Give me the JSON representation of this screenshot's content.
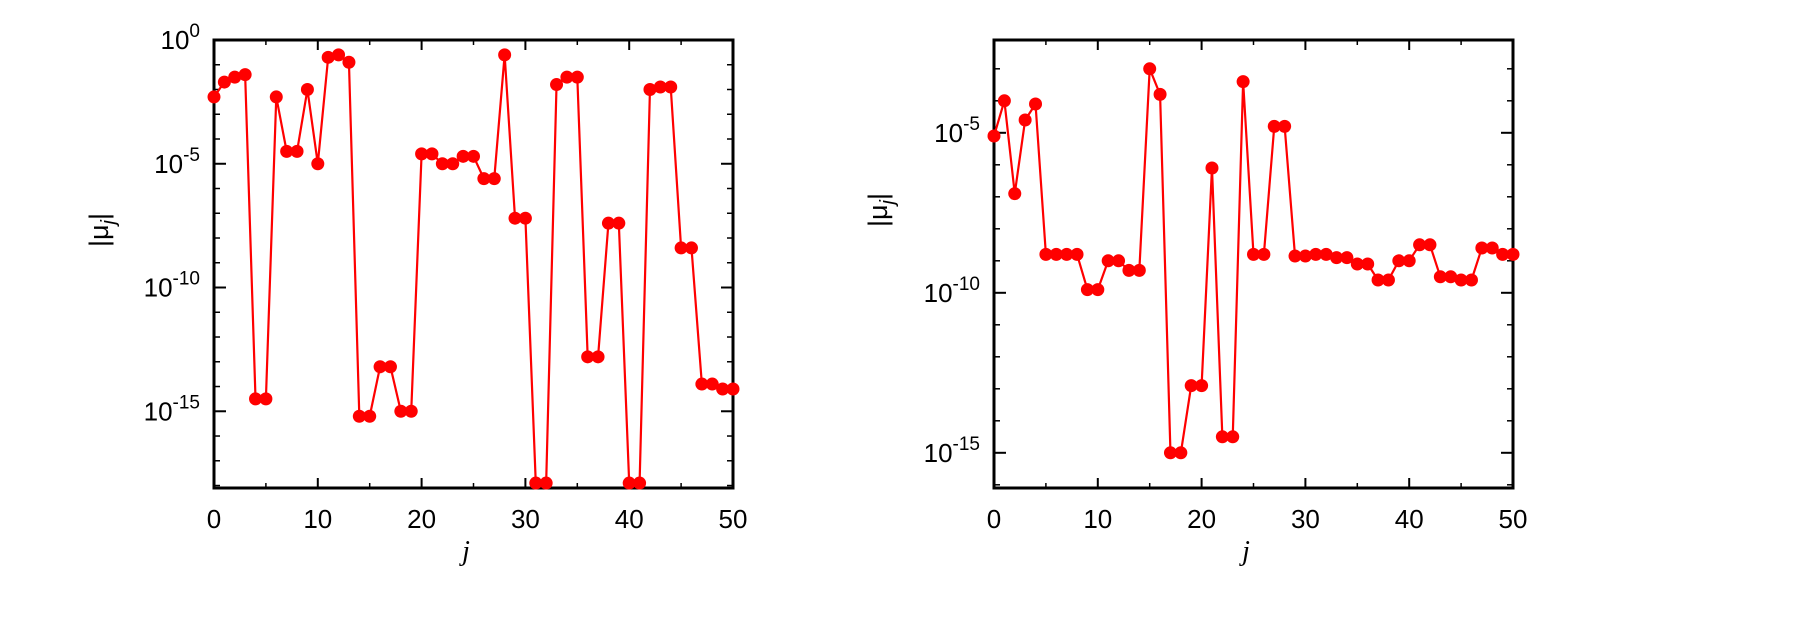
{
  "chart_data": [
    {
      "type": "line",
      "title": "",
      "xlabel": "j",
      "ylabel_parts": {
        "open": "|",
        "mu": "μ",
        "sub": "j",
        "close": "|"
      },
      "x_range": [
        0,
        50
      ],
      "y_scale": "log",
      "y_range_exponent": [
        -18.1,
        0
      ],
      "x_ticks": [
        0,
        10,
        20,
        30,
        40,
        50
      ],
      "y_ticks": [
        {
          "base": "10",
          "exp": "0",
          "value_exponent": 0
        },
        {
          "base": "10",
          "exp": "-5",
          "value_exponent": -5
        },
        {
          "base": "10",
          "exp": "-10",
          "value_exponent": -10
        },
        {
          "base": "10",
          "exp": "-15",
          "value_exponent": -15
        }
      ],
      "grid": false,
      "legend": "none",
      "series_color": "#ff0000",
      "series": [
        {
          "x": [
            0,
            1,
            2,
            3,
            4,
            5,
            6,
            7,
            8,
            9,
            10,
            11,
            12,
            13,
            14,
            15,
            16,
            17,
            18,
            19,
            20,
            21,
            22,
            23,
            24,
            25,
            26,
            27,
            28,
            29,
            30,
            31,
            32,
            33,
            34,
            35,
            36,
            37,
            38,
            39,
            40,
            41,
            42,
            43,
            44,
            45,
            46,
            47,
            48,
            49,
            50
          ],
          "log10_y": [
            -2.3,
            -1.7,
            -1.5,
            -1.4,
            -14.5,
            -14.5,
            -2.3,
            -4.5,
            -4.5,
            -2.0,
            -5.0,
            -0.7,
            -0.6,
            -0.9,
            -15.2,
            -15.2,
            -13.2,
            -13.2,
            -15.0,
            -15.0,
            -4.6,
            -4.6,
            -5.0,
            -5.0,
            -4.7,
            -4.7,
            -5.6,
            -5.6,
            -0.6,
            -7.2,
            -7.2,
            -17.9,
            -17.9,
            -1.8,
            -1.5,
            -1.5,
            -12.8,
            -12.8,
            -7.4,
            -7.4,
            -17.9,
            -17.9,
            -2.0,
            -1.9,
            -1.9,
            -8.4,
            -8.4,
            -13.9,
            -13.9,
            -14.1,
            -14.1
          ]
        }
      ]
    },
    {
      "type": "line",
      "title": "",
      "xlabel": "j",
      "ylabel_parts": {
        "open": "|",
        "mu": "μ",
        "sub": "j",
        "close": "|"
      },
      "x_range": [
        0,
        50
      ],
      "y_scale": "log",
      "y_range_exponent": [
        -16.1,
        -2.1
      ],
      "x_ticks": [
        0,
        10,
        20,
        30,
        40,
        50
      ],
      "y_ticks": [
        {
          "base": "10",
          "exp": "-5",
          "value_exponent": -5
        },
        {
          "base": "10",
          "exp": "-10",
          "value_exponent": -10
        },
        {
          "base": "10",
          "exp": "-15",
          "value_exponent": -15
        }
      ],
      "grid": false,
      "legend": "none",
      "series_color": "#ff0000",
      "series": [
        {
          "x": [
            0,
            1,
            2,
            3,
            4,
            5,
            6,
            7,
            8,
            9,
            10,
            11,
            12,
            13,
            14,
            15,
            16,
            17,
            18,
            19,
            20,
            21,
            22,
            23,
            24,
            25,
            26,
            27,
            28,
            29,
            30,
            31,
            32,
            33,
            34,
            35,
            36,
            37,
            38,
            39,
            40,
            41,
            42,
            43,
            44,
            45,
            46,
            47,
            48,
            49,
            50
          ],
          "log10_y": [
            -5.1,
            -4.0,
            -6.9,
            -4.6,
            -4.1,
            -8.8,
            -8.8,
            -8.8,
            -8.8,
            -9.9,
            -9.9,
            -9.0,
            -9.0,
            -9.3,
            -9.3,
            -3.0,
            -3.8,
            -15.0,
            -15.0,
            -12.9,
            -12.9,
            -6.1,
            -14.5,
            -14.5,
            -3.4,
            -8.8,
            -8.8,
            -4.8,
            -4.8,
            -8.85,
            -8.85,
            -8.8,
            -8.8,
            -8.9,
            -8.9,
            -9.1,
            -9.1,
            -9.6,
            -9.6,
            -9.0,
            -9.0,
            -8.5,
            -8.5,
            -9.5,
            -9.5,
            -9.6,
            -9.6,
            -8.6,
            -8.6,
            -8.8,
            -8.8
          ]
        }
      ]
    }
  ]
}
